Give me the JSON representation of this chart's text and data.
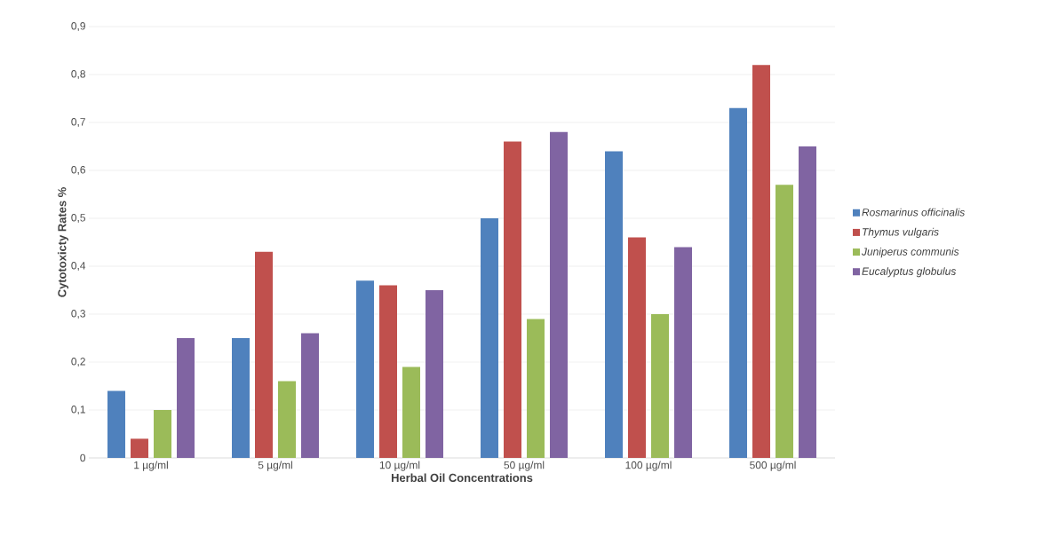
{
  "chart_data": {
    "type": "bar",
    "xlabel": "Herbal Oil Concentrations",
    "ylabel": "Cytotoxicty Rates %",
    "categories": [
      "1 µg/ml",
      "5 µg/ml",
      "10 µg/ml",
      "50 µg/ml",
      "100 µg/ml",
      "500 µg/ml"
    ],
    "series": [
      {
        "name": "Rosmarinus officinalis",
        "color": "#4f81bd",
        "values": [
          0.14,
          0.25,
          0.37,
          0.5,
          0.64,
          0.73
        ]
      },
      {
        "name": "Thymus vulgaris",
        "color": "#c0504d",
        "values": [
          0.04,
          0.43,
          0.36,
          0.66,
          0.46,
          0.82
        ]
      },
      {
        "name": "Juniperus communis",
        "color": "#9bbb59",
        "values": [
          0.1,
          0.16,
          0.19,
          0.29,
          0.3,
          0.57
        ]
      },
      {
        "name": "Eucalyptus globulus",
        "color": "#8064a2",
        "values": [
          0.25,
          0.26,
          0.35,
          0.68,
          0.44,
          0.65
        ]
      }
    ],
    "ylim": [
      0,
      0.9
    ],
    "yticks": [
      0,
      {
        "value": 0.1,
        "label": "0,1"
      },
      {
        "value": 0.2,
        "label": "0,2"
      },
      {
        "value": 0.3,
        "label": "0,3"
      },
      {
        "value": 0.4,
        "label": "0,4"
      },
      {
        "value": 0.5,
        "label": "0,5"
      },
      {
        "value": 0.6,
        "label": "0,6"
      },
      {
        "value": 0.7,
        "label": "0,7"
      },
      {
        "value": 0.8,
        "label": "0,8"
      },
      {
        "value": 0.9,
        "label": "0,9"
      }
    ],
    "grid": "y",
    "legend": "right"
  }
}
